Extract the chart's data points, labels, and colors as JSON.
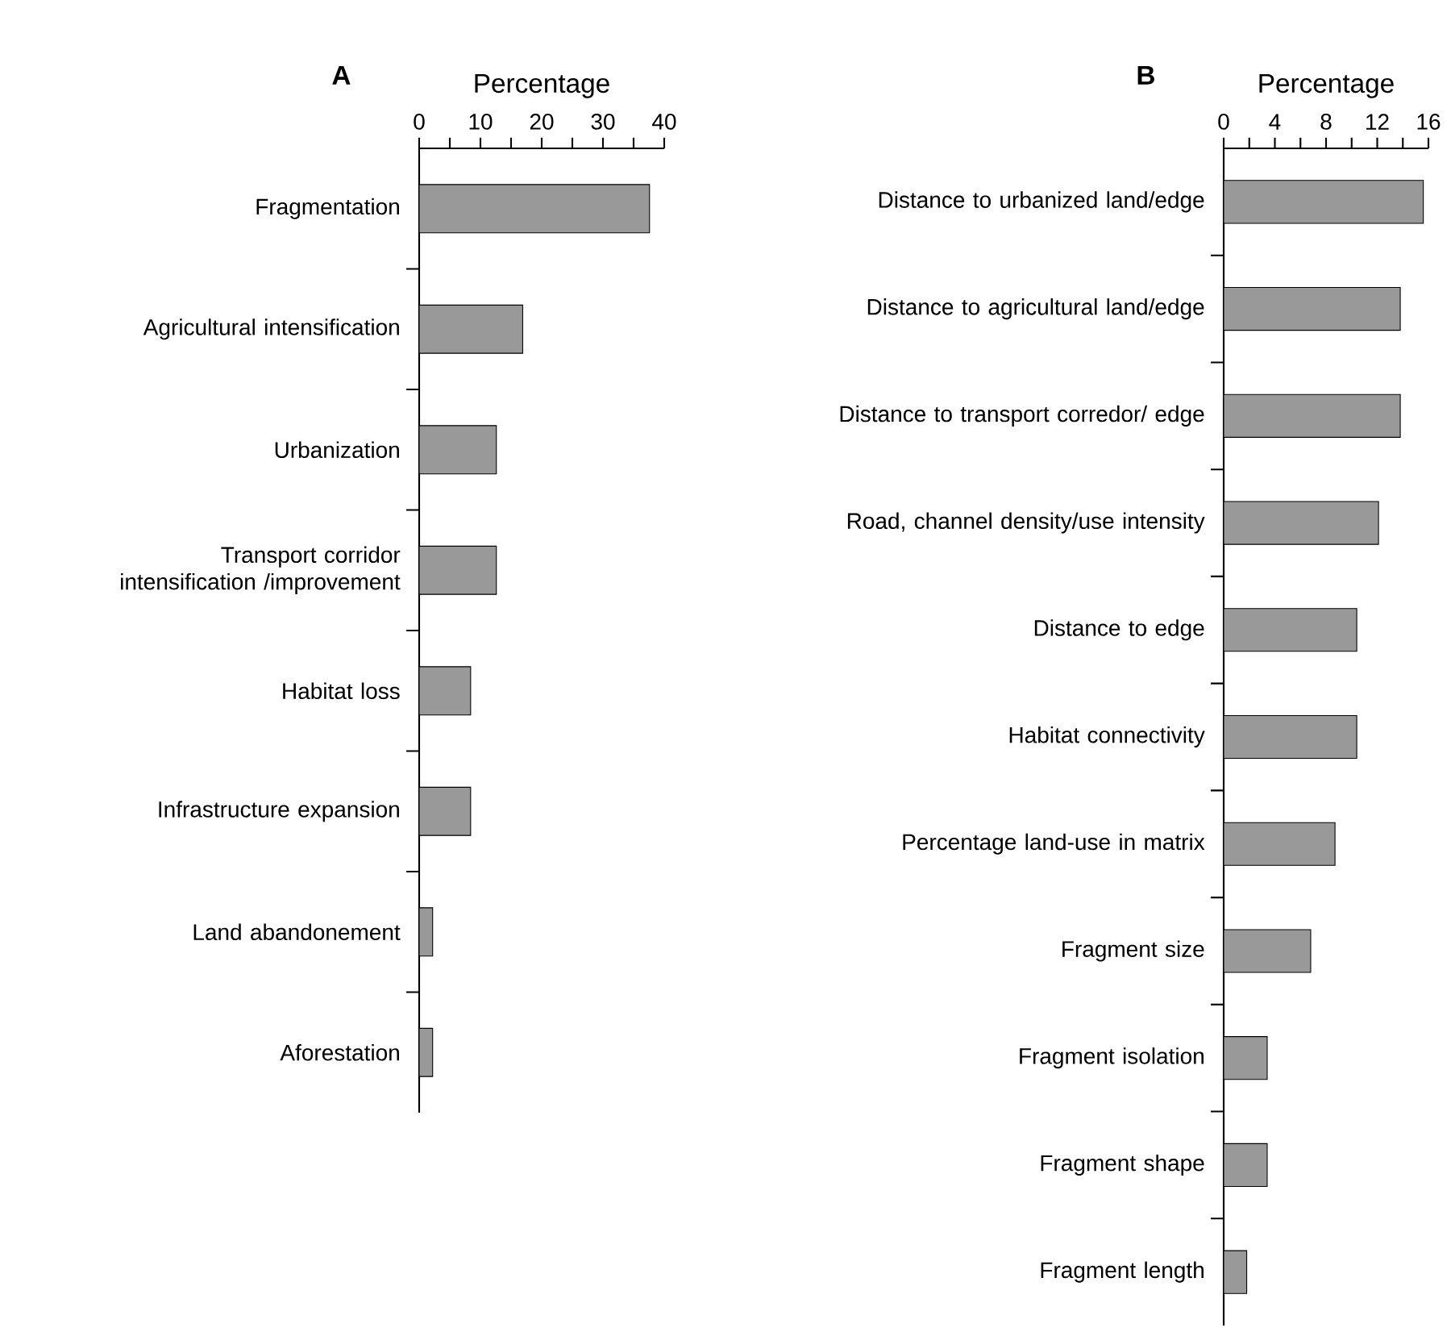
{
  "chart_data": [
    {
      "type": "bar",
      "orientation": "horizontal",
      "title": "A",
      "xlabel": "Percentage",
      "color": "#999999",
      "categories": [
        "Fragmentation",
        "Agricultural intensification",
        "Urbanization",
        "Transport corridor intensification /improvement",
        "Habitat loss",
        "Infrastructure expansion",
        "Land abandonement",
        "Aforestation"
      ],
      "values": [
        37.6,
        16.9,
        12.6,
        12.6,
        8.4,
        8.4,
        2.2,
        2.2
      ],
      "xlim": [
        0,
        40
      ],
      "xticks": [
        0,
        {
          "value": 5,
          "label": null
        },
        10,
        {
          "value": 15,
          "label": null
        },
        20,
        {
          "value": 25,
          "label": null
        },
        30,
        {
          "value": 35,
          "label": null
        },
        40
      ]
    },
    {
      "type": "bar",
      "orientation": "horizontal",
      "title": "B",
      "xlabel": "Percentage",
      "color": "#999999",
      "categories": [
        "Distance to urbanized land/edge",
        "Distance to agricultural land/edge",
        "Distance to transport corredor/ edge",
        "Road, channel density/use intensity",
        "Distance to edge",
        "Habitat connectivity",
        "Percentage land-use in matrix",
        "Fragment size",
        "Fragment isolation",
        "Fragment shape",
        "Fragment length"
      ],
      "values": [
        15.6,
        13.8,
        13.8,
        12.1,
        10.4,
        10.4,
        8.7,
        6.8,
        3.4,
        3.4,
        1.8
      ],
      "xlim": [
        0,
        16
      ],
      "xticks": [
        0,
        {
          "value": 2,
          "label": null
        },
        4,
        {
          "value": 6,
          "label": null
        },
        8,
        {
          "value": 10,
          "label": null
        },
        12,
        {
          "value": 14,
          "label": null
        },
        16
      ]
    }
  ]
}
